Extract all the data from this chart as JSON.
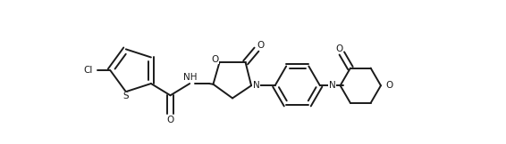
{
  "bg_color": "#ffffff",
  "line_color": "#1a1a1a",
  "line_width": 1.4,
  "font_size": 7.5,
  "figsize": [
    5.66,
    1.62
  ],
  "dpi": 100,
  "xlim": [
    -0.5,
    10.5
  ],
  "ylim": [
    -1.8,
    2.8
  ]
}
